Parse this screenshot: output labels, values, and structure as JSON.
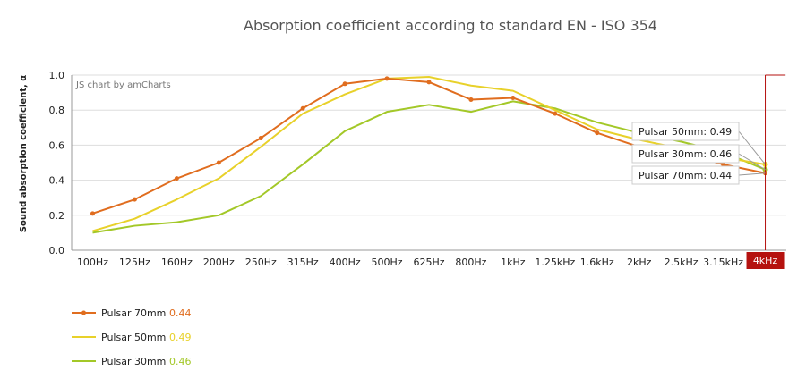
{
  "chart_data": {
    "type": "line",
    "title": "Absorption coefficient according to standard EN - ISO 354",
    "ylabel": "Sound absorption coefficient, α",
    "xlabel": "",
    "categories": [
      "100Hz",
      "125Hz",
      "160Hz",
      "200Hz",
      "250Hz",
      "315Hz",
      "400Hz",
      "500Hz",
      "625Hz",
      "800Hz",
      "1kHz",
      "1.25kHz",
      "1.6kHz",
      "2kHz",
      "2.5kHz",
      "3.15kHz",
      "4kHz"
    ],
    "ylim": [
      0,
      1.0
    ],
    "yticks": [
      "0.0",
      "0.2",
      "0.4",
      "0.6",
      "0.8",
      "1.0"
    ],
    "grid": true,
    "credit": "JS chart by amCharts",
    "series": [
      {
        "name": "Pulsar 70mm",
        "color": "#e06d1f",
        "markers": true,
        "values": [
          0.21,
          0.29,
          0.41,
          0.5,
          0.64,
          0.81,
          0.95,
          0.98,
          0.96,
          0.86,
          0.87,
          0.78,
          0.67,
          0.59,
          0.55,
          0.49,
          0.44
        ]
      },
      {
        "name": "Pulsar 50mm",
        "color": "#e8d12a",
        "markers": false,
        "values": [
          0.11,
          0.18,
          0.29,
          0.41,
          0.59,
          0.78,
          0.89,
          0.98,
          0.99,
          0.94,
          0.91,
          0.8,
          0.69,
          0.63,
          0.58,
          0.53,
          0.49
        ]
      },
      {
        "name": "Pulsar 30mm",
        "color": "#a3c828",
        "markers": false,
        "values": [
          0.1,
          0.14,
          0.16,
          0.2,
          0.31,
          0.49,
          0.68,
          0.79,
          0.83,
          0.79,
          0.85,
          0.81,
          0.73,
          0.67,
          0.62,
          0.56,
          0.46
        ]
      }
    ],
    "cursor": {
      "category": "4kHz",
      "color": "#b5120f"
    },
    "tooltips": [
      {
        "text": "Pulsar 50mm: 0.49"
      },
      {
        "text": "Pulsar 30mm: 0.46"
      },
      {
        "text": "Pulsar 70mm: 0.44"
      }
    ],
    "legend": {
      "placement": "bottom-left",
      "items": [
        {
          "name": "Pulsar 70mm",
          "value": "0.44",
          "color": "#e06d1f"
        },
        {
          "name": "Pulsar 50mm",
          "value": "0.49",
          "color": "#e8d12a"
        },
        {
          "name": "Pulsar 30mm",
          "value": "0.46",
          "color": "#a3c828"
        }
      ]
    }
  }
}
